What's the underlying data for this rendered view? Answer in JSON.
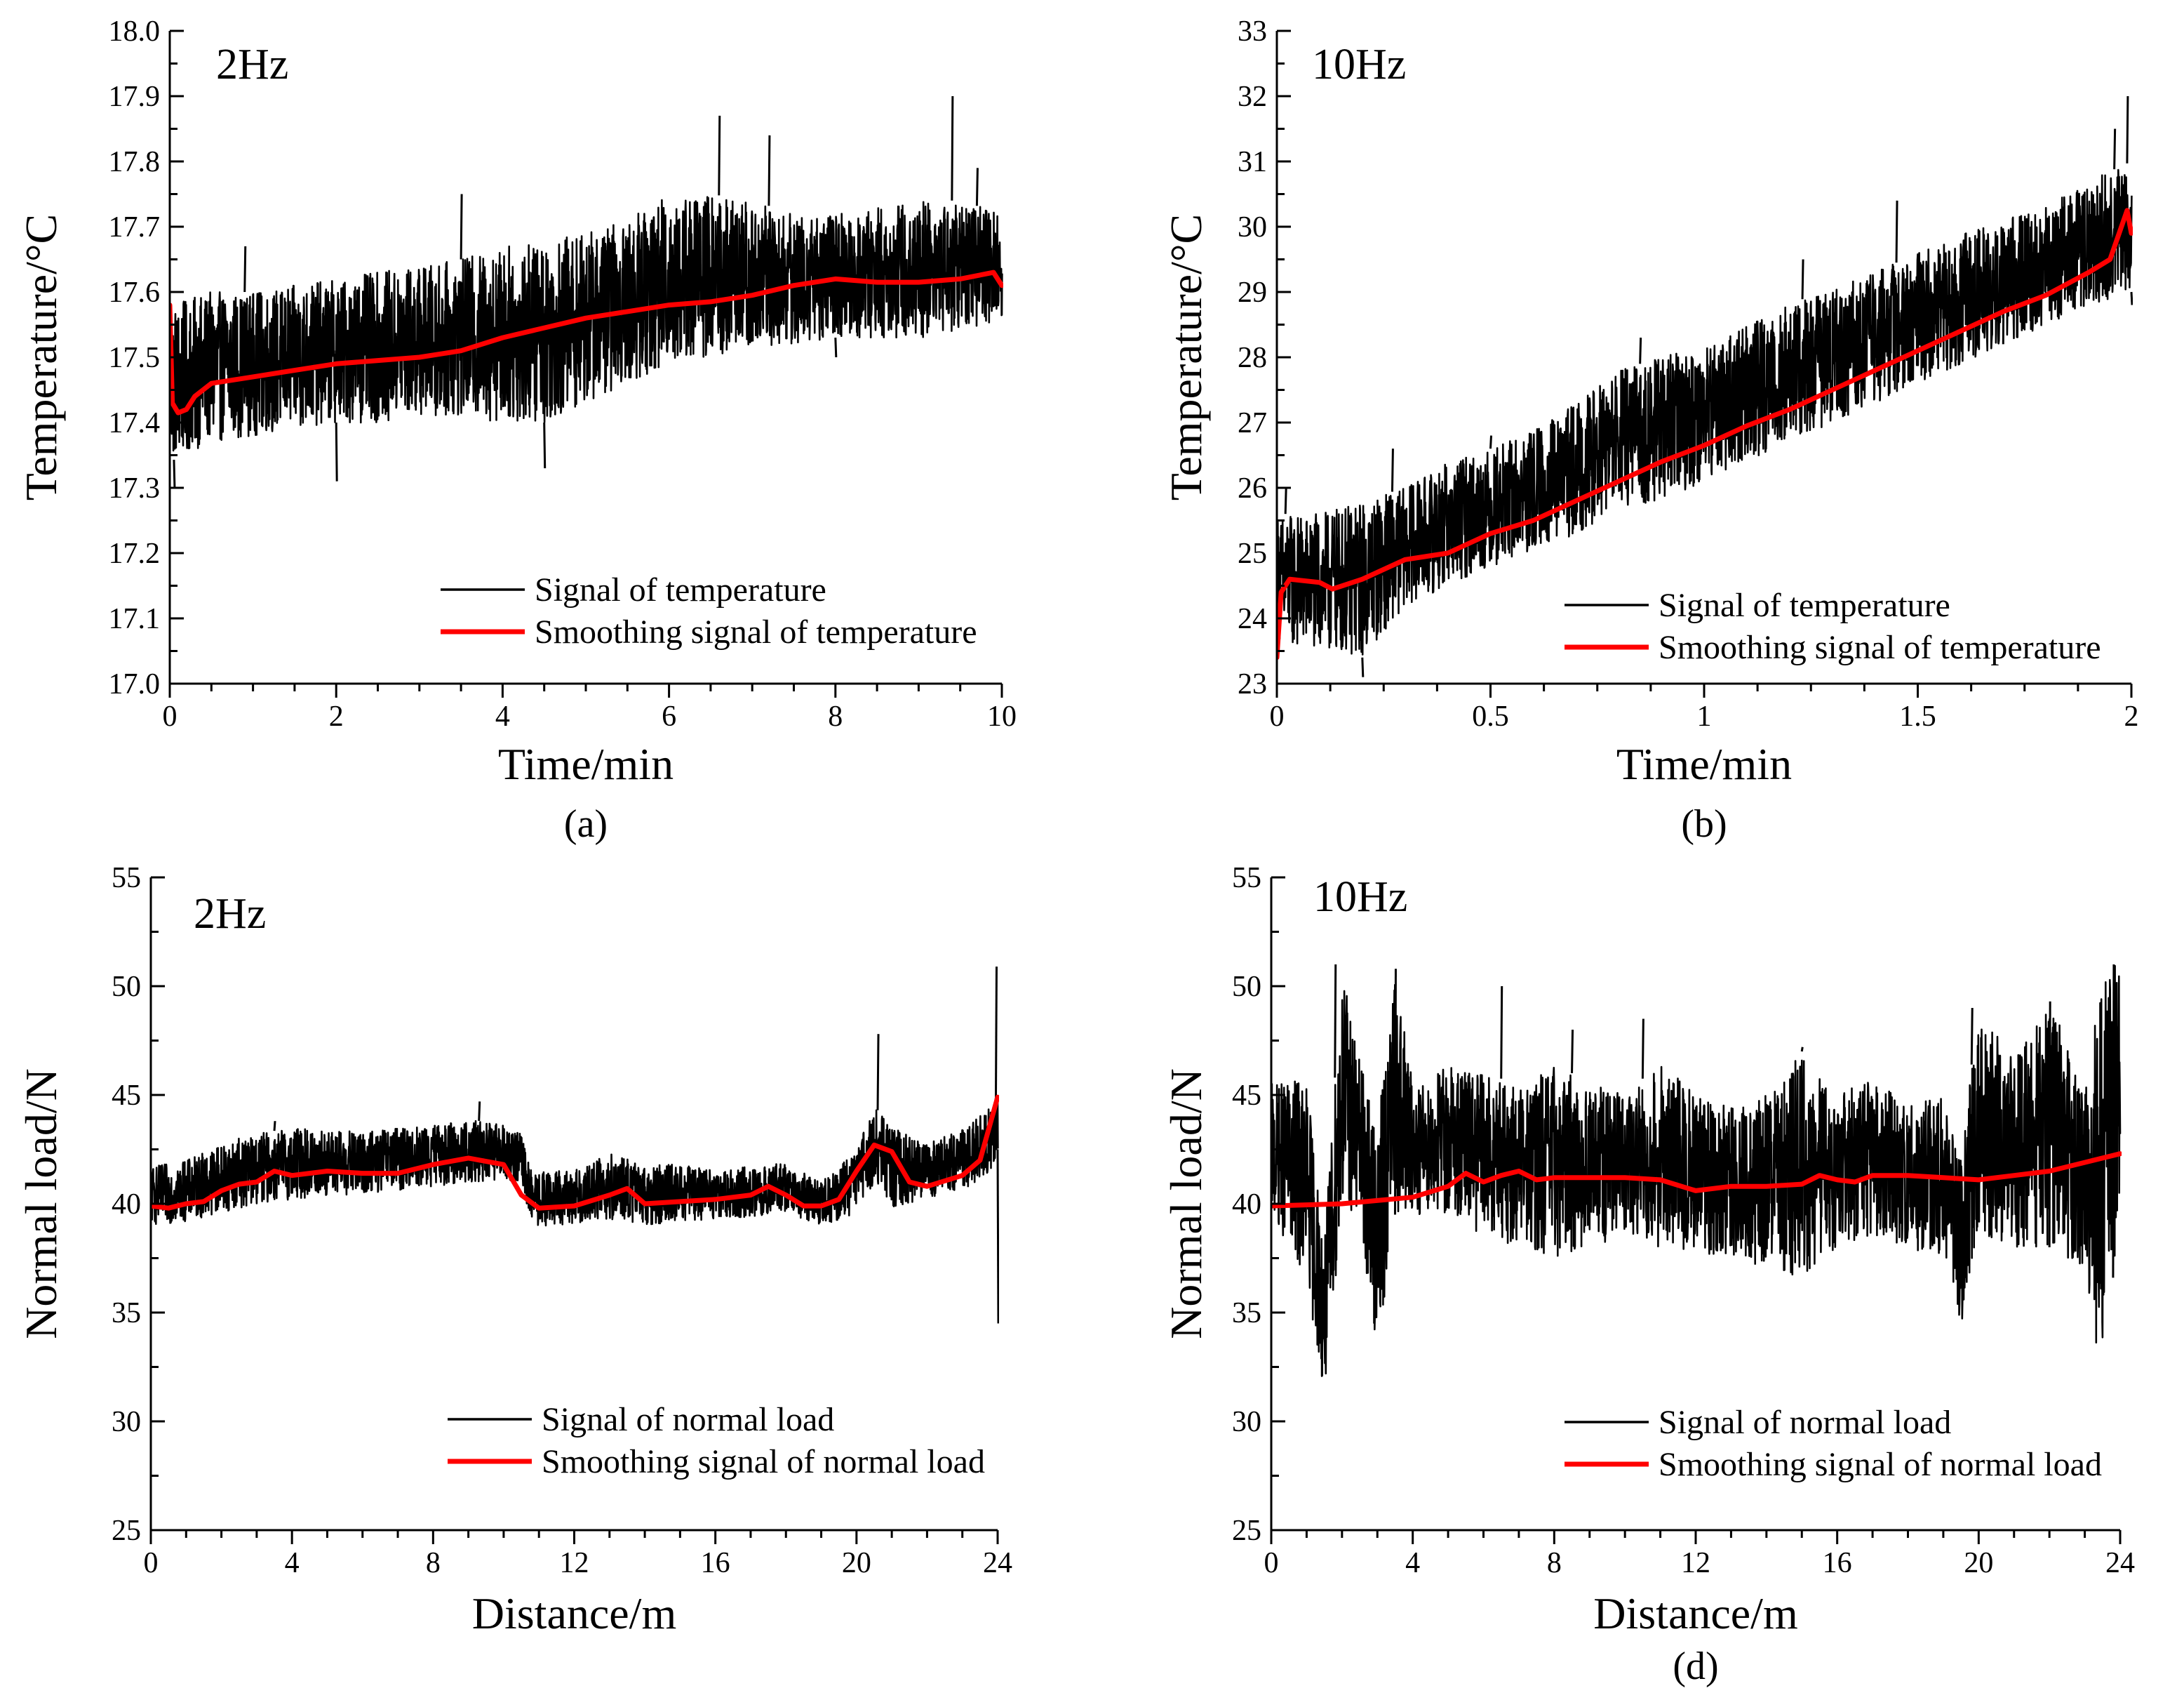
{
  "figure": {
    "colors": {
      "signal": "#000000",
      "smooth": "#ff0000",
      "axis": "#000000"
    }
  },
  "chart_data": [
    {
      "id": "a",
      "type": "line",
      "caption": "(a)",
      "annotation": "2Hz",
      "xlabel": "Time/min",
      "ylabel": "Temperature/°C",
      "xlim": [
        0,
        10
      ],
      "ylim": [
        17.0,
        18.0
      ],
      "xticks": [
        0,
        2,
        4,
        6,
        8,
        10
      ],
      "xtick_labels": [
        "0",
        "2",
        "4",
        "6",
        "8",
        "10"
      ],
      "yticks": [
        17.0,
        17.1,
        17.2,
        17.3,
        17.4,
        17.5,
        17.6,
        17.7,
        17.8,
        17.9,
        18.0
      ],
      "ytick_labels": [
        "17.0",
        "17.1",
        "17.2",
        "17.3",
        "17.4",
        "17.5",
        "17.6",
        "17.7",
        "17.8",
        "17.9",
        "18.0"
      ],
      "grid": false,
      "legend_position": "bottom-right",
      "series": [
        {
          "name": "Signal of temperature",
          "color": "#000000",
          "style": "noisy-band",
          "x": [
            0,
            0.5,
            1,
            1.5,
            2,
            2.5,
            3,
            3.5,
            4,
            4.5,
            5,
            5.5,
            6,
            6.5,
            7,
            7.5,
            8,
            8.5,
            9,
            9.5,
            10
          ],
          "lower": [
            17.34,
            17.37,
            17.38,
            17.39,
            17.4,
            17.4,
            17.41,
            17.41,
            17.4,
            17.4,
            17.43,
            17.46,
            17.49,
            17.5,
            17.51,
            17.52,
            17.53,
            17.53,
            17.53,
            17.54,
            17.55
          ],
          "upper": [
            17.58,
            17.6,
            17.6,
            17.61,
            17.62,
            17.63,
            17.64,
            17.65,
            17.67,
            17.68,
            17.69,
            17.71,
            17.75,
            17.75,
            17.74,
            17.72,
            17.72,
            17.73,
            17.74,
            17.74,
            17.72
          ],
          "spikes": [
            [
              0.05,
              17.3
            ],
            [
              0.9,
              17.67
            ],
            [
              2.0,
              17.31
            ],
            [
              3.5,
              17.75
            ],
            [
              4.5,
              17.33
            ],
            [
              6.6,
              17.87
            ],
            [
              7.2,
              17.84
            ],
            [
              8.0,
              17.5
            ],
            [
              9.4,
              17.9
            ],
            [
              9.7,
              17.79
            ]
          ]
        },
        {
          "name": "Smoothing signal of temperature",
          "color": "#ff0000",
          "style": "line",
          "x": [
            0,
            0.03,
            0.1,
            0.2,
            0.3,
            0.5,
            1,
            1.5,
            2,
            2.5,
            3,
            3.5,
            4,
            4.5,
            5,
            5.5,
            6,
            6.5,
            7,
            7.5,
            8,
            8.5,
            9,
            9.5,
            9.9,
            10
          ],
          "y": [
            17.58,
            17.43,
            17.415,
            17.42,
            17.44,
            17.46,
            17.47,
            17.48,
            17.49,
            17.495,
            17.5,
            17.51,
            17.53,
            17.545,
            17.56,
            17.57,
            17.58,
            17.585,
            17.595,
            17.61,
            17.62,
            17.615,
            17.615,
            17.62,
            17.63,
            17.61
          ]
        }
      ]
    },
    {
      "id": "b",
      "type": "line",
      "caption": "(b)",
      "annotation": "10Hz",
      "xlabel": "Time/min",
      "ylabel": "Temperature/°C",
      "xlim": [
        0,
        2
      ],
      "ylim": [
        23,
        33
      ],
      "xticks": [
        0,
        0.5,
        1,
        1.5,
        2
      ],
      "xtick_labels": [
        "0",
        "0.5",
        "1",
        "1.5",
        "2"
      ],
      "yticks": [
        23,
        24,
        25,
        26,
        27,
        28,
        29,
        30,
        31,
        32,
        33
      ],
      "ytick_labels": [
        "23",
        "24",
        "25",
        "26",
        "27",
        "28",
        "29",
        "30",
        "31",
        "32",
        "33"
      ],
      "grid": false,
      "legend_position": "bottom-right",
      "series": [
        {
          "name": "Signal of temperature",
          "color": "#000000",
          "style": "noisy-band",
          "x": [
            0,
            0.1,
            0.2,
            0.3,
            0.4,
            0.5,
            0.6,
            0.7,
            0.8,
            0.9,
            1.0,
            1.1,
            1.2,
            1.3,
            1.4,
            1.5,
            1.6,
            1.7,
            1.8,
            1.9,
            2.0
          ],
          "lower": [
            23.6,
            23.5,
            23.4,
            24.2,
            24.5,
            24.8,
            25.0,
            25.3,
            25.7,
            25.8,
            26.1,
            26.4,
            26.7,
            27.0,
            27.3,
            27.6,
            27.9,
            28.2,
            28.5,
            28.8,
            29.0
          ],
          "upper": [
            25.6,
            25.6,
            25.8,
            26.0,
            26.4,
            26.6,
            26.9,
            27.3,
            27.8,
            28.0,
            28.2,
            28.5,
            28.8,
            29.1,
            29.3,
            29.6,
            29.9,
            30.1,
            30.3,
            30.7,
            31.0
          ],
          "spikes": [
            [
              0.02,
              26.0
            ],
            [
              0.2,
              23.1
            ],
            [
              0.27,
              26.6
            ],
            [
              0.5,
              26.8
            ],
            [
              0.85,
              28.3
            ],
            [
              1.23,
              29.5
            ],
            [
              1.45,
              30.4
            ],
            [
              1.7,
              29.7
            ],
            [
              1.96,
              31.5
            ],
            [
              1.99,
              32.0
            ],
            [
              2.0,
              28.8
            ]
          ]
        },
        {
          "name": "Smoothing signal of temperature",
          "color": "#ff0000",
          "style": "line",
          "x": [
            0,
            0.01,
            0.03,
            0.1,
            0.13,
            0.2,
            0.3,
            0.4,
            0.5,
            0.6,
            0.7,
            0.8,
            0.9,
            1.0,
            1.1,
            1.2,
            1.3,
            1.4,
            1.5,
            1.6,
            1.7,
            1.8,
            1.9,
            1.95,
            1.99,
            2.0
          ],
          "y": [
            23.4,
            24.4,
            24.6,
            24.55,
            24.45,
            24.6,
            24.9,
            25.0,
            25.3,
            25.5,
            25.8,
            26.1,
            26.4,
            26.65,
            26.95,
            27.2,
            27.5,
            27.8,
            28.1,
            28.4,
            28.7,
            28.95,
            29.3,
            29.5,
            30.25,
            29.9
          ]
        }
      ]
    },
    {
      "id": "c",
      "type": "line",
      "caption": "",
      "annotation": "2Hz",
      "xlabel": "Distance/m",
      "ylabel": "Normal load/N",
      "xlim": [
        0,
        24
      ],
      "ylim": [
        25,
        55
      ],
      "xticks": [
        0,
        4,
        8,
        12,
        16,
        20,
        24
      ],
      "xtick_labels": [
        "0",
        "4",
        "8",
        "12",
        "16",
        "20",
        "24"
      ],
      "yticks": [
        25,
        30,
        35,
        40,
        45,
        50,
        55
      ],
      "ytick_labels": [
        "25",
        "30",
        "35",
        "40",
        "45",
        "50",
        "55"
      ],
      "grid": false,
      "legend_position": "bottom-right",
      "series": [
        {
          "name": "Signal of normal load",
          "color": "#000000",
          "style": "noisy-band",
          "x": [
            0,
            1,
            2,
            3,
            4,
            5,
            6,
            7,
            8,
            9,
            10,
            10.5,
            10.8,
            12,
            13,
            14,
            15,
            16,
            17,
            18,
            19,
            20,
            20.5,
            21,
            22,
            23,
            23.8,
            24
          ],
          "lower": [
            39.0,
            39.2,
            39.6,
            40.0,
            40.2,
            40.3,
            40.4,
            40.6,
            40.8,
            41.0,
            41.1,
            41.0,
            38.9,
            39.1,
            39.3,
            39.0,
            39.2,
            39.3,
            39.4,
            39.6,
            39.0,
            39.5,
            41.0,
            39.8,
            40.2,
            40.6,
            41.5,
            42.5
          ],
          "upper": [
            41.7,
            42.0,
            42.8,
            43.2,
            43.5,
            43.4,
            43.3,
            43.5,
            43.6,
            43.9,
            43.6,
            43.2,
            41.4,
            41.6,
            42.3,
            41.8,
            41.8,
            41.6,
            41.7,
            41.9,
            41.0,
            42.5,
            44.5,
            43.5,
            42.8,
            43.4,
            44.5,
            45.0
          ],
          "spikes": [
            [
              3.5,
              43.8
            ],
            [
              9.3,
              44.7
            ],
            [
              20.6,
              47.8
            ],
            [
              23.95,
              50.9
            ],
            [
              24.0,
              34.5
            ]
          ]
        },
        {
          "name": "Smoothing signal of normal load",
          "color": "#ff0000",
          "style": "line",
          "x": [
            0,
            0.5,
            1,
            1.5,
            2,
            2.5,
            3,
            3.5,
            4,
            5,
            6,
            7,
            8,
            9,
            10,
            10.5,
            11,
            12,
            13,
            13.5,
            14,
            15,
            16,
            17,
            17.5,
            18,
            18.5,
            19,
            19.5,
            20,
            20.5,
            21,
            21.5,
            22,
            23,
            23.5,
            24
          ],
          "y": [
            39.9,
            39.8,
            40.0,
            40.1,
            40.6,
            40.9,
            41.0,
            41.5,
            41.3,
            41.5,
            41.4,
            41.4,
            41.8,
            42.1,
            41.8,
            40.4,
            39.8,
            39.9,
            40.4,
            40.7,
            40.0,
            40.1,
            40.2,
            40.4,
            40.8,
            40.4,
            39.9,
            39.9,
            40.2,
            41.5,
            42.7,
            42.4,
            41.0,
            40.8,
            41.3,
            42.0,
            44.9
          ]
        }
      ]
    },
    {
      "id": "d",
      "type": "line",
      "caption": "(d)",
      "annotation": "10Hz",
      "xlabel": "Distance/m",
      "ylabel": "Normal load/N",
      "xlim": [
        0,
        24
      ],
      "ylim": [
        25,
        55
      ],
      "xticks": [
        0,
        4,
        8,
        12,
        16,
        20,
        24
      ],
      "xtick_labels": [
        "0",
        "4",
        "8",
        "12",
        "16",
        "20",
        "24"
      ],
      "yticks": [
        25,
        30,
        35,
        40,
        45,
        50,
        55
      ],
      "ytick_labels": [
        "25",
        "30",
        "35",
        "40",
        "45",
        "50",
        "55"
      ],
      "grid": false,
      "legend_position": "bottom-right",
      "series": [
        {
          "name": "Signal of normal load",
          "color": "#000000",
          "style": "noisy-band",
          "x": [
            0,
            1,
            1.5,
            2,
            2.5,
            3,
            3.5,
            4,
            5,
            6,
            7,
            8,
            9,
            10,
            11,
            12,
            13,
            14,
            15,
            16,
            17,
            18,
            19,
            19.5,
            20,
            21,
            22,
            23,
            23.5,
            24
          ],
          "lower": [
            39.5,
            36.5,
            31.0,
            40.0,
            39.0,
            33.0,
            39.5,
            39.5,
            39.5,
            38.5,
            38.0,
            37.5,
            38.0,
            38.5,
            38.0,
            37.8,
            37.5,
            37.0,
            36.5,
            38.0,
            38.5,
            38.0,
            37.5,
            34.5,
            38.5,
            38.0,
            38.0,
            37.0,
            31.5,
            40.0
          ],
          "upper": [
            45.5,
            45.8,
            38.0,
            51.0,
            46.5,
            43.5,
            50.8,
            45.5,
            46.5,
            46.0,
            45.5,
            46.5,
            45.5,
            45.0,
            46.5,
            45.0,
            44.5,
            45.0,
            47.0,
            45.0,
            46.0,
            44.5,
            45.0,
            42.5,
            49.0,
            46.5,
            49.3,
            45.5,
            51.0,
            51.0
          ],
          "spikes": [
            [
              1.8,
              51.0
            ],
            [
              3.5,
              50.8
            ],
            [
              6.5,
              50.0
            ],
            [
              8.5,
              48.0
            ],
            [
              10.5,
              48.5
            ],
            [
              15.0,
              47.2
            ],
            [
              19.8,
              49.0
            ],
            [
              22.0,
              49.3
            ],
            [
              23.8,
              51.0
            ]
          ]
        },
        {
          "name": "Smoothing signal of normal load",
          "color": "#ff0000",
          "style": "line",
          "x": [
            0,
            2,
            4,
            5,
            5.5,
            6,
            6.5,
            7,
            7.5,
            8,
            9,
            10,
            11,
            12,
            13,
            14,
            15,
            15.5,
            16,
            16.5,
            17,
            18,
            19,
            20,
            21,
            22,
            23,
            24
          ],
          "y": [
            39.9,
            40.0,
            40.3,
            40.8,
            41.4,
            41.0,
            41.3,
            41.5,
            41.1,
            41.2,
            41.2,
            41.2,
            41.1,
            40.6,
            40.8,
            40.8,
            40.9,
            41.3,
            41.1,
            41.0,
            41.3,
            41.3,
            41.2,
            41.1,
            41.3,
            41.5,
            41.9,
            42.3
          ]
        }
      ]
    }
  ]
}
